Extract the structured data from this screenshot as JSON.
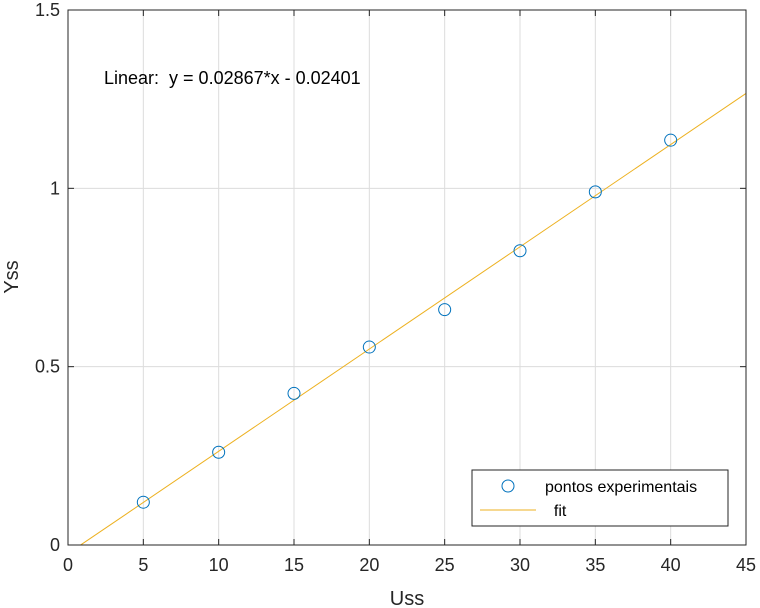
{
  "chart_data": {
    "type": "scatter",
    "xlabel": "Uss",
    "ylabel": "Yss",
    "xlim": [
      0,
      45
    ],
    "ylim": [
      0,
      1.5
    ],
    "xticks": [
      0,
      5,
      10,
      15,
      20,
      25,
      30,
      35,
      40,
      45
    ],
    "yticks": [
      0,
      0.5,
      1,
      1.5
    ],
    "xtick_labels": [
      "0",
      "5",
      "10",
      "15",
      "20",
      "25",
      "30",
      "35",
      "40",
      "45"
    ],
    "ytick_labels": [
      "0",
      "0.5",
      "1",
      "1.5"
    ],
    "grid": true,
    "legend_position": "bottom-right",
    "annotation": "Linear:  y = 0.02867*x - 0.02401",
    "series": [
      {
        "name": "pontos experimentais",
        "type": "scatter",
        "marker": "open-circle",
        "color": "#0072BD",
        "x": [
          5,
          10,
          15,
          20,
          25,
          30,
          35,
          40
        ],
        "y": [
          0.12,
          0.26,
          0.425,
          0.555,
          0.66,
          0.825,
          0.99,
          1.135
        ]
      },
      {
        "name": "  fit",
        "type": "line",
        "color": "#EDB120",
        "slope": 0.02867,
        "intercept": -0.02401,
        "x_range": [
          0.84,
          45
        ]
      }
    ]
  }
}
